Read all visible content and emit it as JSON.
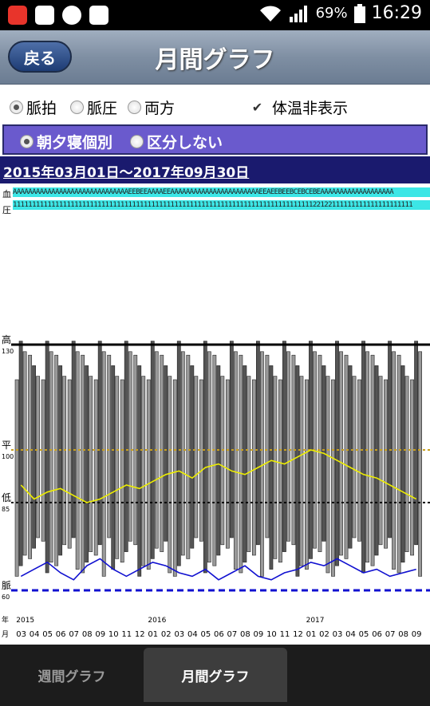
{
  "status_bar": {
    "battery": "69%",
    "time": "16:29"
  },
  "header": {
    "back_label": "戻る",
    "title": "月間グラフ"
  },
  "options": {
    "pulse": "脈拍",
    "pressure": "脈圧",
    "both": "両方",
    "selected": "pulse",
    "hide_temp": "体温非表示",
    "hide_temp_checked": true
  },
  "period": {
    "separate": "朝夕寝個別",
    "no_split": "区分しない",
    "selected": "separate"
  },
  "date_range": "2015年03月01日～2017年09月30日",
  "codes": {
    "row1_label": "血",
    "row2_label": "圧",
    "row1": "AAAAAAAAAAAAAAAAAAAAAAAAAAAAAAEEBEEAAAAEEAAAAAAAAAAAAAAAAAAAAAAAEEAEEBEEBCEBCEBEAAAAAAAAAAAAAAAAAAA",
    "row2": "11111111111111111111111111111111111111111111111111111111111111111111111111111122122111111111111111111111"
  },
  "chart_data": {
    "type": "line",
    "refs": [
      {
        "label": "高",
        "value": 130,
        "color": "#000000"
      },
      {
        "label": "平",
        "value": 100,
        "color": "#c8a020"
      },
      {
        "label": "低",
        "value": 85,
        "color": "#000000"
      },
      {
        "label": "脈",
        "value": 60,
        "color": "#1010d0"
      }
    ],
    "year_label": "年",
    "month_label": "月",
    "years": [
      "2015",
      "2016",
      "2017"
    ],
    "months": [
      "03",
      "04",
      "05",
      "06",
      "07",
      "08",
      "09",
      "10",
      "11",
      "12",
      "01",
      "02",
      "03",
      "04",
      "05",
      "06",
      "07",
      "08",
      "09",
      "10",
      "11",
      "12",
      "01",
      "02",
      "03",
      "04",
      "05",
      "06",
      "07",
      "08",
      "09"
    ],
    "series": [
      {
        "color": "#eeee00",
        "values": [
          90,
          86,
          88,
          89,
          87,
          85,
          86,
          88,
          90,
          89,
          91,
          93,
          94,
          92,
          95,
          96,
          94,
          93,
          95,
          97,
          96,
          98,
          100,
          99,
          97,
          95,
          93,
          92,
          90,
          88,
          86
        ]
      },
      {
        "color": "#1010d0",
        "values": [
          64,
          66,
          68,
          65,
          63,
          67,
          69,
          66,
          64,
          66,
          68,
          67,
          65,
          64,
          66,
          63,
          65,
          67,
          64,
          63,
          65,
          66,
          68,
          67,
          69,
          67,
          65,
          66,
          64,
          65,
          66
        ]
      }
    ]
  }
}
